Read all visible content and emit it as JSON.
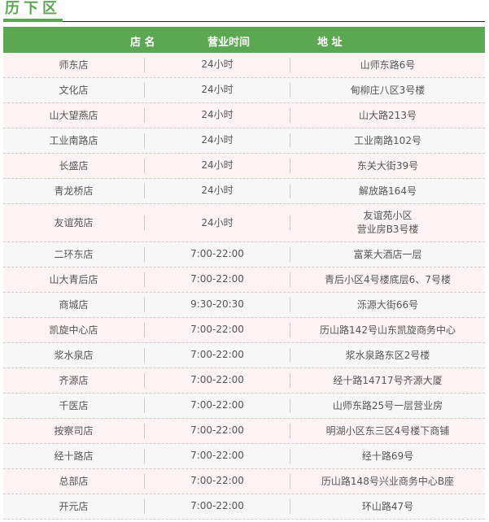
{
  "title": "历下区",
  "headers": {
    "name": "店 名",
    "hours": "营业时间",
    "address": "地 址"
  },
  "rows": [
    {
      "name": "师东店",
      "hours": "24小时",
      "address": "山师东路6号"
    },
    {
      "name": "文化店",
      "hours": "24小时",
      "address": "甸柳庄八区3号楼"
    },
    {
      "name": "山大望燕店",
      "hours": "24小时",
      "address": "山大路213号"
    },
    {
      "name": "工业南路店",
      "hours": "24小时",
      "address": "工业南路102号"
    },
    {
      "name": "长盛店",
      "hours": "24小时",
      "address": "东关大街39号"
    },
    {
      "name": "青龙桥店",
      "hours": "24小时",
      "address": "解放路164号"
    },
    {
      "name": "友谊苑店",
      "hours": "24小时",
      "address": "友谊苑小区",
      "address2": "营业房B3号楼"
    },
    {
      "name": "二环东店",
      "hours": "7:00-22:00",
      "address": "富莱大酒店一层"
    },
    {
      "name": "山大青后店",
      "hours": "7:00-22:00",
      "address": "青后小区4号楼底层6、7号楼"
    },
    {
      "name": "商城店",
      "hours": "9:30-20:30",
      "address": "泺源大街66号"
    },
    {
      "name": "凯旋中心店",
      "hours": "7:00-22:00",
      "address": "历山路142号山东凯旋商务中心"
    },
    {
      "name": "浆水泉店",
      "hours": "7:00-22:00",
      "address": "浆水泉路东区2号楼"
    },
    {
      "name": "齐源店",
      "hours": "7:00-22:00",
      "address": "经十路14717号齐源大厦"
    },
    {
      "name": "千医店",
      "hours": "7:00-22:00",
      "address": "山师东路25号一层营业房"
    },
    {
      "name": "按察司店",
      "hours": "7:00-22:00",
      "address": "明湖小区东三区4号楼下商铺"
    },
    {
      "name": "经十路店",
      "hours": "7:00-22:00",
      "address": "经十路69号"
    },
    {
      "name": "总部店",
      "hours": "7:00-22:00",
      "address": "历山路148号兴业商务中心B座"
    },
    {
      "name": "开元店",
      "hours": "7:00-22:00",
      "address": "环山路47号"
    }
  ],
  "colors": {
    "accent": "#5ca852",
    "row_odd": "#fdf3f3",
    "row_even": "#f7f7f7"
  }
}
